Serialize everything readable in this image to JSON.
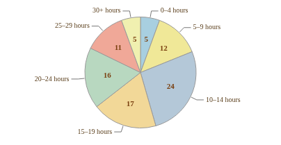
{
  "chart_data": {
    "type": "pie",
    "categories": [
      "0–4 hours",
      "5–9 hours",
      "10–14 hours",
      "15–19 hours",
      "20–24 hours",
      "25–29 hours",
      "30+ hours"
    ],
    "values": [
      5,
      12,
      24,
      17,
      16,
      11,
      5
    ],
    "colors": [
      "#a8cfe0",
      "#f0e898",
      "#b4c8d8",
      "#f2d898",
      "#b8d8c0",
      "#f0a898",
      "#f0f0b0"
    ],
    "data_labels": true
  }
}
